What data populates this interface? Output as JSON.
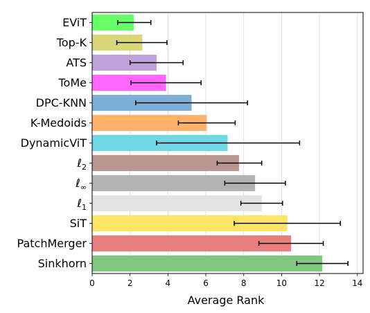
{
  "chart_data": {
    "type": "bar",
    "orientation": "horizontal",
    "xlabel": "Average Rank",
    "ylabel": "",
    "xlim": [
      0,
      14.3
    ],
    "xticks": [
      0,
      2,
      4,
      6,
      8,
      10,
      12,
      14
    ],
    "xtick_labels": [
      "0",
      "2",
      "4",
      "6",
      "8",
      "10",
      "12",
      "14"
    ],
    "grid": "vertical",
    "legend": "none",
    "categories": [
      {
        "label": "EViT",
        "value": 2.2,
        "err_low": 1.35,
        "err_high": 3.1,
        "color": "#66ff66"
      },
      {
        "label": "Top-K",
        "value": 2.65,
        "err_low": 1.3,
        "err_high": 3.95,
        "color": "#d9d77a"
      },
      {
        "label": "ATS",
        "value": 3.4,
        "err_low": 2.0,
        "err_high": 4.8,
        "color": "#c0a2da"
      },
      {
        "label": "ToMe",
        "value": 3.9,
        "err_low": 2.05,
        "err_high": 5.75,
        "color": "#ff66ff"
      },
      {
        "label": "DPC-KNN",
        "value": 5.25,
        "err_low": 2.3,
        "err_high": 8.2,
        "color": "#7bafd6"
      },
      {
        "label": "K-Medoids",
        "value": 6.05,
        "err_low": 4.55,
        "err_high": 7.55,
        "color": "#ffb26b"
      },
      {
        "label": "DynamicViT",
        "value": 7.15,
        "err_low": 3.4,
        "err_high": 10.95,
        "color": "#6fd8e4"
      },
      {
        "label": "ℓ",
        "sub": "2",
        "value": 7.75,
        "err_low": 6.6,
        "err_high": 8.95,
        "color": "#b8958e"
      },
      {
        "label": "ℓ",
        "sub": "∞",
        "value": 8.6,
        "err_low": 7.0,
        "err_high": 10.2,
        "color": "#b3b3b3"
      },
      {
        "label": "ℓ",
        "sub": "1",
        "value": 8.95,
        "err_low": 7.85,
        "err_high": 10.05,
        "color": "#e3e3e3"
      },
      {
        "label": "SiT",
        "value": 10.3,
        "err_low": 7.5,
        "err_high": 13.1,
        "color": "#ffe566"
      },
      {
        "label": "PatchMerger",
        "value": 10.5,
        "err_low": 8.8,
        "err_high": 12.2,
        "color": "#e87f7f"
      },
      {
        "label": "Sinkhorn",
        "value": 12.15,
        "err_low": 10.8,
        "err_high": 13.5,
        "color": "#80c880"
      }
    ]
  }
}
